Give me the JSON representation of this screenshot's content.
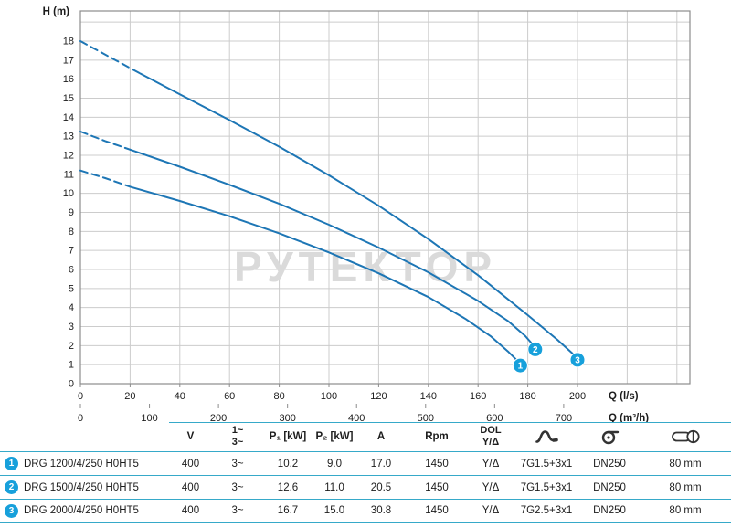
{
  "colors": {
    "curve": "#1d76b5",
    "marker": "#17a0db",
    "teal": "#36a9c9",
    "grid": "#cccccc",
    "axis": "#8c8c8c",
    "text": "#1c1c1c",
    "watermark": "#dadada",
    "icon": "#333333"
  },
  "chart_data": {
    "type": "line",
    "watermark": "РУТЕКТОР",
    "y_axis": {
      "label": "H (m)",
      "min": 0,
      "max": 18,
      "tick_step": 1
    },
    "x_axis_primary": {
      "label": "Q (l/s)",
      "min": 0,
      "max": 200,
      "tick_step": 20
    },
    "x_axis_secondary": {
      "label": "Q (m³/h)",
      "min": 0,
      "max": 700,
      "tick_step": 100,
      "factor": 3.6
    },
    "grid": true,
    "series": [
      {
        "id": "1",
        "name": "DRG 1200/4/250 H0HT5",
        "dash_until": 20,
        "points": [
          [
            0,
            11.2
          ],
          [
            10,
            10.8
          ],
          [
            20,
            10.35
          ],
          [
            40,
            9.6
          ],
          [
            60,
            8.8
          ],
          [
            80,
            7.9
          ],
          [
            100,
            6.9
          ],
          [
            120,
            5.8
          ],
          [
            140,
            4.55
          ],
          [
            155,
            3.4
          ],
          [
            165,
            2.5
          ],
          [
            172,
            1.7
          ],
          [
            177,
            1.05
          ]
        ]
      },
      {
        "id": "2",
        "name": "DRG 1500/4/250 H0HT5",
        "dash_until": 20,
        "points": [
          [
            0,
            13.25
          ],
          [
            10,
            12.75
          ],
          [
            20,
            12.3
          ],
          [
            40,
            11.4
          ],
          [
            60,
            10.45
          ],
          [
            80,
            9.45
          ],
          [
            100,
            8.35
          ],
          [
            120,
            7.15
          ],
          [
            140,
            5.85
          ],
          [
            160,
            4.35
          ],
          [
            172,
            3.3
          ],
          [
            179,
            2.5
          ],
          [
            183,
            1.9
          ]
        ]
      },
      {
        "id": "3",
        "name": "DRG 2000/4/250 H0HT5",
        "dash_until": 24,
        "points": [
          [
            0,
            18
          ],
          [
            12,
            17.15
          ],
          [
            24,
            16.3
          ],
          [
            40,
            15.2
          ],
          [
            60,
            13.85
          ],
          [
            80,
            12.45
          ],
          [
            100,
            10.95
          ],
          [
            120,
            9.35
          ],
          [
            140,
            7.6
          ],
          [
            160,
            5.7
          ],
          [
            180,
            3.6
          ],
          [
            192,
            2.3
          ],
          [
            200,
            1.35
          ]
        ]
      }
    ]
  },
  "table": {
    "headers": {
      "v": "V",
      "phase_1": "1~",
      "phase_3": "3~",
      "p1": "P₁ [kW]",
      "p2": "P₂ [kW]",
      "a": "A",
      "rpm": "Rpm",
      "dol_line1": "DOL",
      "dol_line2": "Y/Δ",
      "cable_icon": "power-cable-icon",
      "volute_icon": "pump-volute-icon",
      "outlet_icon": "discharge-outlet-icon"
    },
    "rows": [
      {
        "num": "1",
        "name": "DRG 1200/4/250 H0HT5",
        "v": "400",
        "phase": "3~",
        "p1": "10.2",
        "p2": "9.0",
        "a": "17.0",
        "rpm": "1450",
        "dol": "Y/Δ",
        "cable": "7G1.5+3x1",
        "flange": "DN250",
        "outlet": "80 mm"
      },
      {
        "num": "2",
        "name": "DRG 1500/4/250 H0HT5",
        "v": "400",
        "phase": "3~",
        "p1": "12.6",
        "p2": "11.0",
        "a": "20.5",
        "rpm": "1450",
        "dol": "Y/Δ",
        "cable": "7G1.5+3x1",
        "flange": "DN250",
        "outlet": "80 mm"
      },
      {
        "num": "3",
        "name": "DRG 2000/4/250 H0HT5",
        "v": "400",
        "phase": "3~",
        "p1": "16.7",
        "p2": "15.0",
        "a": "30.8",
        "rpm": "1450",
        "dol": "Y/Δ",
        "cable": "7G2.5+3x1",
        "flange": "DN250",
        "outlet": "80 mm"
      }
    ]
  }
}
